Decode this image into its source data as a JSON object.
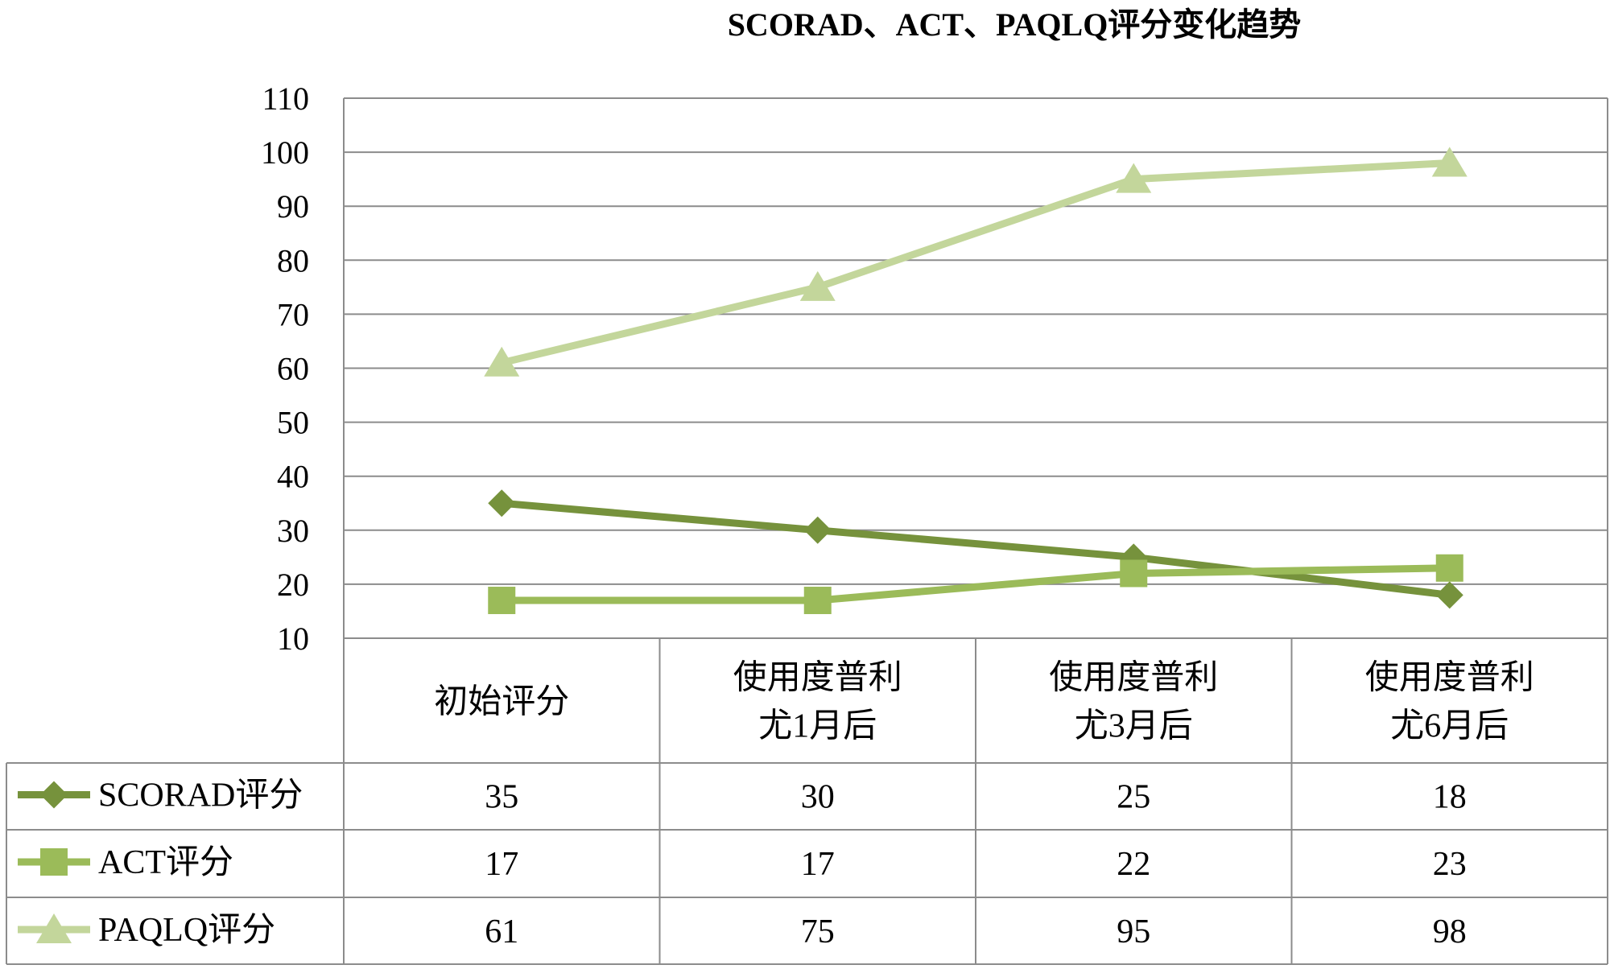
{
  "chart_data": {
    "type": "line",
    "title": "SCORAD、ACT、PAQLQ评分变化趋势",
    "categories": [
      [
        "初始评分"
      ],
      [
        "使用度普利",
        "尤1月后"
      ],
      [
        "使用度普利",
        "尤3月后"
      ],
      [
        "使用度普利",
        "尤6月后"
      ]
    ],
    "ylim": [
      10,
      110
    ],
    "yticks": [
      10,
      20,
      30,
      40,
      50,
      60,
      70,
      80,
      90,
      100,
      110
    ],
    "grid": true,
    "legend": "data-table-left",
    "series": [
      {
        "name": "SCORAD评分",
        "values": [
          35,
          30,
          25,
          18
        ],
        "color": "#76923c",
        "marker": "diamond"
      },
      {
        "name": "ACT评分",
        "values": [
          17,
          17,
          22,
          23
        ],
        "color": "#9bbb59",
        "marker": "square"
      },
      {
        "name": "PAQLQ评分",
        "values": [
          61,
          75,
          95,
          98
        ],
        "color": "#c3d69b",
        "marker": "triangle"
      }
    ]
  }
}
